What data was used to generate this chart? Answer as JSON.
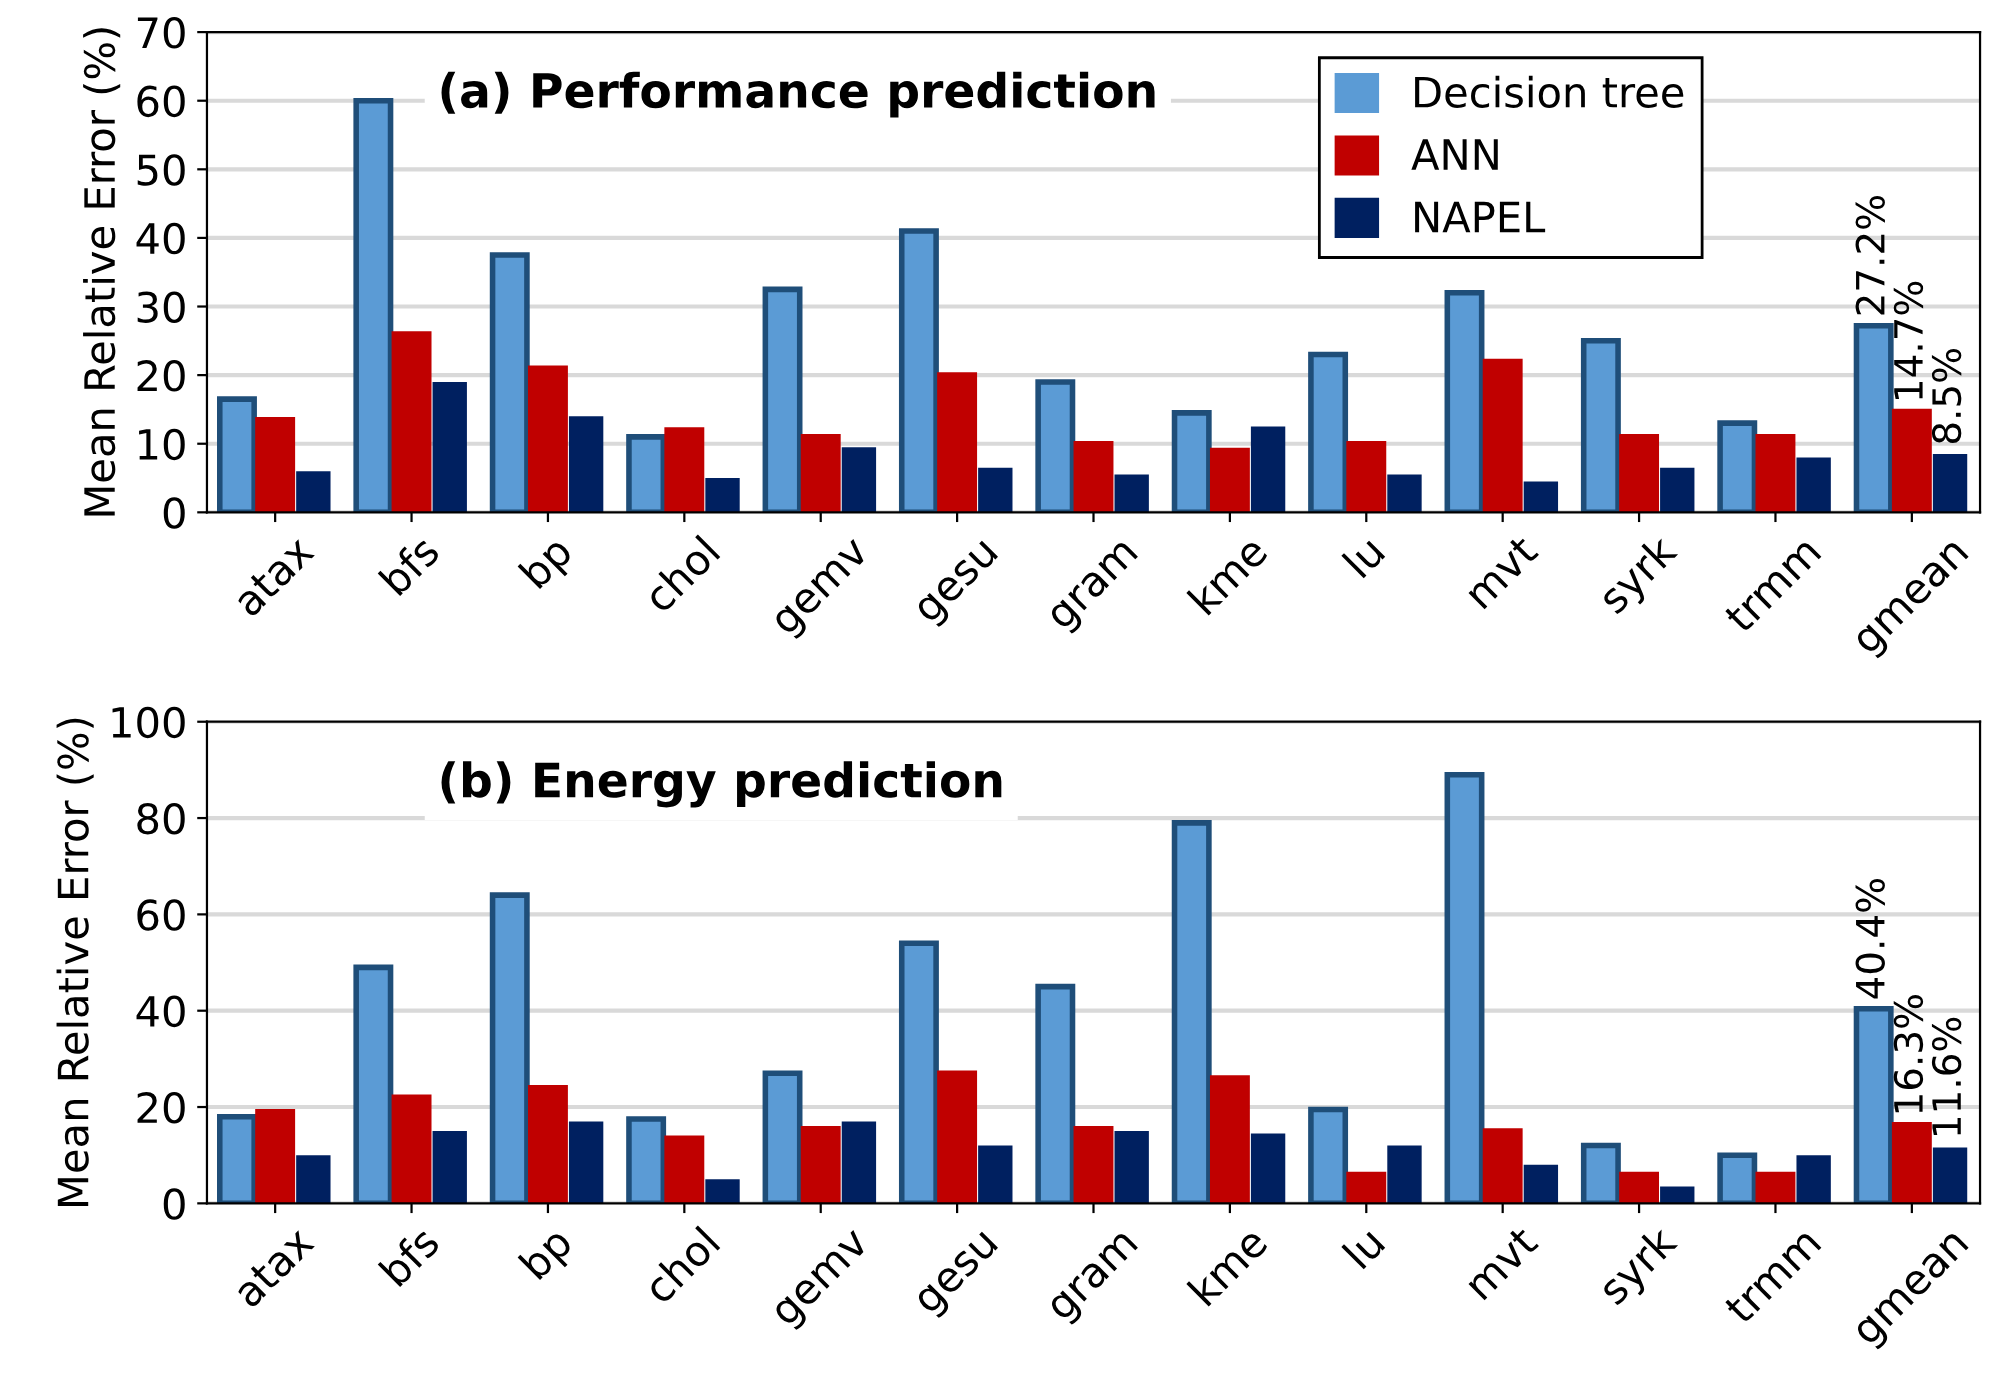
{
  "chart_data": [
    {
      "type": "bar",
      "title": "(a) Performance prediction",
      "ylabel": "Mean Relative Error (%)",
      "categories": [
        "atax",
        "bfs",
        "bp",
        "chol",
        "gemv",
        "gesu",
        "gram",
        "kme",
        "lu",
        "mvt",
        "syrk",
        "trmm",
        "gmean"
      ],
      "ylim": [
        0,
        70
      ],
      "yticks": [
        0,
        10,
        20,
        30,
        40,
        50,
        60,
        70
      ],
      "grid": "y",
      "legend": "top right",
      "series": [
        {
          "name": "Decision tree",
          "color": "#5b9bd5",
          "values": [
            16.5,
            60,
            37.5,
            11,
            32.5,
            41,
            19,
            14.5,
            23,
            32,
            25,
            13,
            27.2
          ],
          "value_labels": [
            null,
            null,
            null,
            null,
            null,
            null,
            null,
            null,
            null,
            null,
            null,
            null,
            "27.2%"
          ]
        },
        {
          "name": "ANN",
          "color": "#c00000",
          "values": [
            13.5,
            26,
            21,
            12,
            11,
            20,
            10,
            9,
            10,
            22,
            11,
            11,
            14.7
          ],
          "value_labels": [
            null,
            null,
            null,
            null,
            null,
            null,
            null,
            null,
            null,
            null,
            null,
            null,
            "14.7%"
          ]
        },
        {
          "name": "NAPEL",
          "color": "#002060",
          "values": [
            6,
            19,
            14,
            5,
            9.5,
            6.5,
            5.5,
            12.5,
            5.5,
            4.5,
            6.5,
            8,
            8.5
          ],
          "value_labels": [
            null,
            null,
            null,
            null,
            null,
            null,
            null,
            null,
            null,
            null,
            null,
            null,
            "8.5%"
          ]
        }
      ]
    },
    {
      "type": "bar",
      "title": "(b) Energy prediction",
      "ylabel": "Mean Relative Error (%)",
      "categories": [
        "atax",
        "bfs",
        "bp",
        "chol",
        "gemv",
        "gesu",
        "gram",
        "kme",
        "lu",
        "mvt",
        "syrk",
        "trmm",
        "gmean"
      ],
      "ylim": [
        0,
        100
      ],
      "yticks": [
        0,
        20,
        40,
        60,
        80,
        100
      ],
      "grid": "y",
      "series": [
        {
          "color": "#5b9bd5",
          "values": [
            18,
            49,
            64,
            17.5,
            27,
            54,
            45,
            79,
            19.5,
            89,
            12,
            10,
            40.4
          ],
          "value_labels": [
            null,
            null,
            null,
            null,
            null,
            null,
            null,
            null,
            null,
            null,
            null,
            null,
            "40.4%"
          ]
        },
        {
          "color": "#c00000",
          "values": [
            19,
            22,
            24,
            13.5,
            15.5,
            27,
            15.5,
            26,
            6,
            15,
            6,
            6,
            16.3
          ],
          "value_labels": [
            null,
            null,
            null,
            null,
            null,
            null,
            null,
            null,
            null,
            null,
            null,
            null,
            "16.3%"
          ]
        },
        {
          "color": "#002060",
          "values": [
            10,
            15,
            17,
            5,
            17,
            12,
            15,
            14.5,
            12,
            8,
            3.5,
            10,
            11.6
          ],
          "value_labels": [
            null,
            null,
            null,
            null,
            null,
            null,
            null,
            null,
            null,
            null,
            null,
            null,
            "11.6%"
          ]
        }
      ]
    }
  ]
}
